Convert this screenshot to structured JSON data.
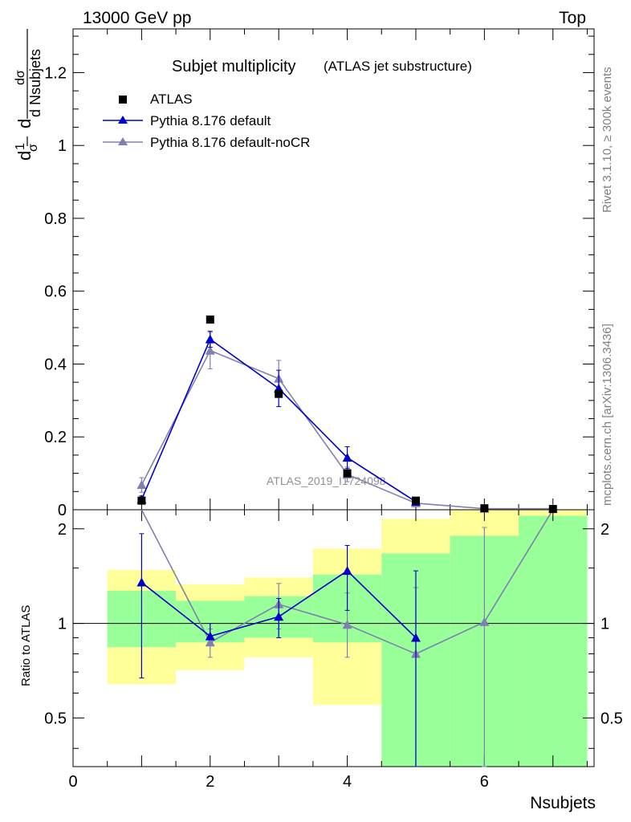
{
  "header": {
    "energy_label": "13000 GeV pp",
    "process_label": "Top"
  },
  "side_labels": {
    "rivet": "Rivet 3.1.10, ≥ 300k events",
    "mcplots": "mcplots.cern.ch [arXiv:1306.3436]"
  },
  "colors": {
    "data": "#000000",
    "pythia_default": "#0000cc",
    "pythia_nocr": "#8080b0",
    "band_green": "#99ff99",
    "band_yellow": "#ffff99"
  },
  "chart_data": {
    "type": "scatter",
    "title": "Subjet multiplicity",
    "subtitle": "(ATLAS jet substructure)",
    "watermark": "ATLAS_2019_I1724098",
    "ylabel_parts": [
      "1",
      "σ",
      "dσ",
      "d Nsubjets",
      "d"
    ],
    "xlabel": "Nsubjets",
    "ratio_ylabel": "Ratio to ATLAS",
    "xlim": [
      0,
      7.6
    ],
    "ylim": [
      0,
      1.32
    ],
    "ratio_ylim": [
      0.35,
      2.3
    ],
    "x_ticks": [
      "0",
      "2",
      "4",
      "6"
    ],
    "y_ticks": [
      "0",
      "0.2",
      "0.4",
      "0.6",
      "0.8",
      "1",
      "1.2"
    ],
    "ratio_ticks": [
      "0.5",
      "1",
      "2"
    ],
    "legend": [
      "ATLAS",
      "Pythia 8.176 default",
      "Pythia 8.176 default-noCR"
    ],
    "data": {
      "name": "ATLAS",
      "x": [
        1,
        2,
        3,
        4,
        5,
        6,
        7
      ],
      "y": [
        0.025,
        0.522,
        0.318,
        0.1,
        0.025,
        0.004,
        0.002
      ]
    },
    "series": [
      {
        "name": "Pythia 8.176 default",
        "x": [
          1,
          2,
          3,
          4,
          5
        ],
        "y": [
          0.028,
          0.468,
          0.333,
          0.143,
          0.022
        ],
        "err": [
          0.01,
          0.022,
          0.05,
          0.03,
          0.007
        ],
        "ratio": [
          1.35,
          0.91,
          1.05,
          1.47,
          0.9
        ],
        "ratio_err_lo": [
          0.67,
          0.89,
          0.9,
          1.1,
          0.3
        ],
        "ratio_err_hi": [
          1.93,
          1.0,
          1.2,
          1.77,
          1.47
        ]
      },
      {
        "name": "Pythia 8.176 default-noCR",
        "x": [
          1,
          2,
          3,
          4,
          5,
          6,
          7
        ],
        "y": [
          0.068,
          0.437,
          0.36,
          0.097,
          0.018,
          0.003,
          0.003
        ],
        "err": [
          0.02,
          0.05,
          0.05,
          0.02,
          0.005,
          0.002,
          0.002
        ],
        "ratio": [
          3.0,
          0.87,
          1.15,
          0.99,
          0.8,
          1.01,
          3.0
        ],
        "ratio_err_lo": [
          2.4,
          0.78,
          0.96,
          0.78,
          0.3,
          0.3,
          3.0
        ],
        "ratio_err_hi": [
          3.0,
          0.96,
          1.34,
          1.25,
          1.3,
          2.02,
          3.0
        ]
      }
    ],
    "bands": {
      "bin_edges": [
        0.5,
        1.5,
        2.5,
        3.5,
        4.5,
        5.5,
        6.5,
        7.5
      ],
      "green_lo": [
        0.84,
        0.87,
        0.9,
        0.87,
        0.35,
        0.35,
        0.35
      ],
      "green_hi": [
        1.27,
        1.18,
        1.22,
        1.43,
        1.67,
        1.9,
        2.2
      ],
      "yellow_lo": [
        0.64,
        0.71,
        0.78,
        0.55,
        0.35,
        0.35,
        0.35
      ],
      "yellow_hi": [
        1.48,
        1.33,
        1.4,
        1.73,
        2.15,
        2.3,
        2.3
      ]
    }
  }
}
